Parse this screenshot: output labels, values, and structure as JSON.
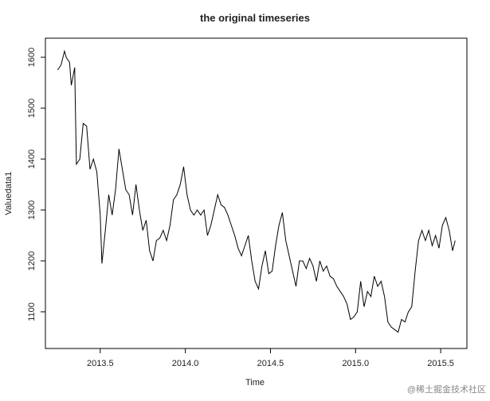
{
  "chart_data": {
    "type": "line",
    "title": "the original timeseries",
    "xlabel": "Time",
    "ylabel": "Valuedata1",
    "watermark": "@稀土掘金技术社区",
    "x": [
      2013.25,
      2013.27,
      2013.29,
      2013.3,
      2013.32,
      2013.33,
      2013.35,
      2013.36,
      2013.38,
      2013.4,
      2013.42,
      2013.44,
      2013.46,
      2013.48,
      2013.5,
      2013.51,
      2013.53,
      2013.55,
      2013.57,
      2013.59,
      2013.61,
      2013.63,
      2013.65,
      2013.67,
      2013.69,
      2013.71,
      2013.73,
      2013.75,
      2013.77,
      2013.79,
      2013.81,
      2013.83,
      2013.85,
      2013.87,
      2013.89,
      2013.91,
      2013.93,
      2013.95,
      2013.97,
      2013.99,
      2014.01,
      2014.03,
      2014.05,
      2014.07,
      2014.09,
      2014.11,
      2014.13,
      2014.15,
      2014.17,
      2014.19,
      2014.21,
      2014.23,
      2014.25,
      2014.27,
      2014.29,
      2014.31,
      2014.33,
      2014.35,
      2014.37,
      2014.39,
      2014.41,
      2014.43,
      2014.45,
      2014.47,
      2014.49,
      2014.51,
      2014.53,
      2014.55,
      2014.57,
      2014.59,
      2014.61,
      2014.63,
      2014.65,
      2014.67,
      2014.69,
      2014.71,
      2014.73,
      2014.75,
      2014.77,
      2014.79,
      2014.81,
      2014.83,
      2014.85,
      2014.87,
      2014.89,
      2014.91,
      2014.93,
      2014.95,
      2014.97,
      2014.99,
      2015.01,
      2015.03,
      2015.05,
      2015.07,
      2015.09,
      2015.11,
      2015.13,
      2015.15,
      2015.17,
      2015.19,
      2015.21,
      2015.23,
      2015.25,
      2015.27,
      2015.29,
      2015.31,
      2015.33,
      2015.35,
      2015.37,
      2015.39,
      2015.41,
      2015.43,
      2015.45,
      2015.47,
      2015.49,
      2015.51,
      2015.53,
      2015.55,
      2015.57,
      2015.585
    ],
    "series": [
      {
        "name": "Valuedata1",
        "color": "#000000",
        "values": [
          1575,
          1585,
          1612,
          1600,
          1590,
          1545,
          1580,
          1390,
          1400,
          1470,
          1465,
          1380,
          1400,
          1375,
          1290,
          1195,
          1260,
          1330,
          1290,
          1340,
          1420,
          1380,
          1340,
          1330,
          1290,
          1350,
          1300,
          1260,
          1280,
          1220,
          1200,
          1240,
          1245,
          1260,
          1240,
          1270,
          1320,
          1330,
          1350,
          1385,
          1330,
          1300,
          1290,
          1300,
          1290,
          1300,
          1250,
          1270,
          1300,
          1330,
          1310,
          1305,
          1290,
          1270,
          1250,
          1225,
          1210,
          1230,
          1250,
          1200,
          1160,
          1145,
          1190,
          1220,
          1175,
          1180,
          1230,
          1270,
          1295,
          1240,
          1210,
          1180,
          1150,
          1200,
          1200,
          1185,
          1205,
          1190,
          1160,
          1200,
          1180,
          1190,
          1170,
          1165,
          1150,
          1140,
          1130,
          1115,
          1085,
          1090,
          1100,
          1160,
          1110,
          1140,
          1130,
          1170,
          1150,
          1160,
          1130,
          1080,
          1070,
          1065,
          1060,
          1085,
          1080,
          1100,
          1110,
          1180,
          1240,
          1260,
          1240,
          1260,
          1230,
          1250,
          1225,
          1270,
          1285,
          1260,
          1220,
          1240
        ]
      }
    ],
    "xlim": [
      2013.178,
      2015.654
    ],
    "ylim": [
      1028,
      1637.5
    ],
    "xticks": [
      2013.5,
      {
        "value": 2014,
        "label": "2014.0"
      },
      2014.5,
      {
        "value": 2015,
        "label": "2015.0"
      },
      2015.5
    ],
    "yticks": [
      1100,
      1200,
      1300,
      1400,
      1500,
      1600
    ]
  }
}
